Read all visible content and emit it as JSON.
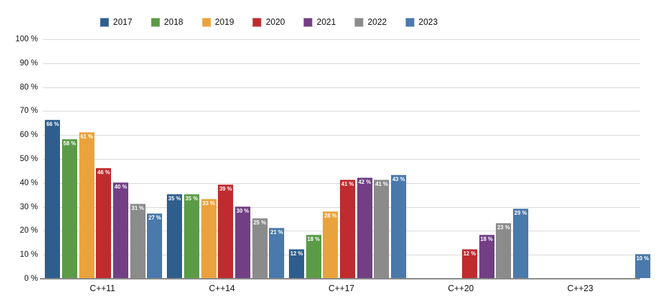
{
  "chart_data": {
    "type": "bar",
    "title": "",
    "xlabel": "",
    "ylabel": "",
    "categories": [
      "C++11",
      "C++14",
      "C++17",
      "C++20",
      "C++23"
    ],
    "ylim": [
      0,
      100
    ],
    "ytick_step": 10,
    "grid": true,
    "legend_position": "top",
    "y_ticks": [
      {
        "value": 100,
        "label": "100 %"
      },
      {
        "value": 90,
        "label": "90 %"
      },
      {
        "value": 80,
        "label": "80 %"
      },
      {
        "value": 70,
        "label": "70 %"
      },
      {
        "value": 60,
        "label": "60 %"
      },
      {
        "value": 50,
        "label": "50 %"
      },
      {
        "value": 40,
        "label": "40 %"
      },
      {
        "value": 30,
        "label": "30 %"
      },
      {
        "value": 20,
        "label": "20 %"
      },
      {
        "value": 10,
        "label": "10 %"
      },
      {
        "value": 0,
        "label": "0 %"
      }
    ],
    "series": [
      {
        "name": "2017",
        "color": "#2e5e8e",
        "values": [
          66,
          35,
          12,
          null,
          null
        ],
        "labels": [
          "66 %",
          "35 %",
          "12 %",
          null,
          null
        ]
      },
      {
        "name": "2018",
        "color": "#5b9b46",
        "values": [
          58,
          35,
          18,
          null,
          null
        ],
        "labels": [
          "58 %",
          "35 %",
          "18 %",
          null,
          null
        ]
      },
      {
        "name": "2019",
        "color": "#eaa33c",
        "values": [
          61,
          33,
          28,
          null,
          null
        ],
        "labels": [
          "61 %",
          "33 %",
          "28 %",
          null,
          null
        ]
      },
      {
        "name": "2020",
        "color": "#bf2b2e",
        "values": [
          46,
          39,
          41,
          12,
          null
        ],
        "labels": [
          "46 %",
          "39 %",
          "41 %",
          "12 %",
          null
        ]
      },
      {
        "name": "2021",
        "color": "#723f85",
        "values": [
          40,
          30,
          42,
          18,
          null
        ],
        "labels": [
          "40 %",
          "30 %",
          "42 %",
          "18 %",
          null
        ]
      },
      {
        "name": "2022",
        "color": "#8b8b8b",
        "values": [
          31,
          25,
          41,
          23,
          null
        ],
        "labels": [
          "31 %",
          "25 %",
          "41 %",
          "23 %",
          null
        ]
      },
      {
        "name": "2023",
        "color": "#4a79ab",
        "values": [
          27,
          21,
          43,
          29,
          10
        ],
        "labels": [
          "27 %",
          "21 %",
          "43 %",
          "29 %",
          "10 %"
        ]
      }
    ]
  },
  "colors": {
    "background": "#ffffff",
    "gridline": "#d8d8d8",
    "axis": "#898989",
    "value_label": "#ffffff",
    "tick_text": "#111111"
  }
}
